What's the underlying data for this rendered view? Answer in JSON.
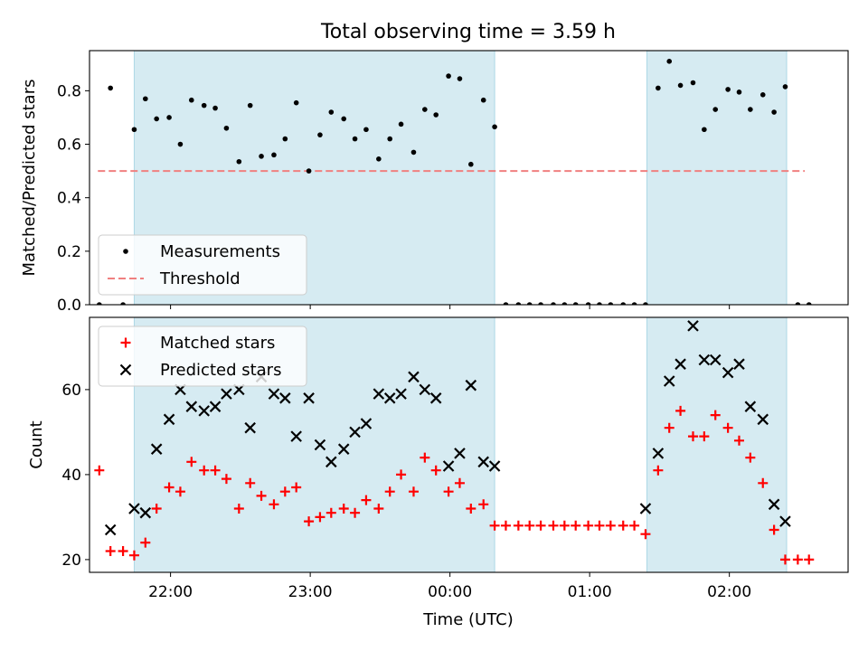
{
  "figure": {
    "title": "Total observing time = 3.59 h",
    "xlabel": "Time (UTC)"
  },
  "chart_data": [
    {
      "type": "scatter",
      "ylabel": "Matched/Predicted stars",
      "ylim": [
        0,
        0.95
      ],
      "yticks": [
        0.0,
        0.2,
        0.4,
        0.6,
        0.8
      ],
      "ytick_labels": [
        "0.0",
        "0.2",
        "0.4",
        "0.6",
        "0.8"
      ],
      "xlim_hours": [
        -2.58,
        2.85
      ],
      "xticks_hours": [
        -2,
        -1,
        0,
        1,
        2
      ],
      "xtick_labels": [
        "22:00",
        "23:00",
        "00:00",
        "01:00",
        "02:00"
      ],
      "shaded_intervals_hours": [
        [
          -2.26,
          0.32
        ],
        [
          1.41,
          2.41
        ]
      ],
      "threshold": {
        "y": 0.5,
        "x_range_hours": [
          -2.52,
          2.54
        ],
        "color": "#f08080"
      },
      "legend": {
        "placement": "lower-left",
        "entries": [
          "Measurements",
          "Threshold"
        ]
      },
      "series": [
        {
          "name": "Measurements",
          "marker": "dot",
          "color": "#000000",
          "x_hours": [
            -2.51,
            -2.43,
            -2.34,
            -2.26,
            -2.18,
            -2.1,
            -2.01,
            -1.93,
            -1.85,
            -1.76,
            -1.68,
            -1.6,
            -1.51,
            -1.43,
            -1.35,
            -1.26,
            -1.18,
            -1.1,
            -1.01,
            -0.93,
            -0.85,
            -0.76,
            -0.68,
            -0.6,
            -0.51,
            -0.43,
            -0.35,
            -0.26,
            -0.18,
            -0.1,
            -0.01,
            0.07,
            0.15,
            0.24,
            0.32,
            0.4,
            0.49,
            0.57,
            0.65,
            0.74,
            0.82,
            0.9,
            0.99,
            1.07,
            1.15,
            1.24,
            1.32,
            1.4,
            1.49,
            1.57,
            1.65,
            1.74,
            1.82,
            1.9,
            1.99,
            2.07,
            2.15,
            2.24,
            2.32,
            2.4,
            2.49,
            2.57
          ],
          "y": [
            0.0,
            0.81,
            0.0,
            0.655,
            0.77,
            0.695,
            0.7,
            0.6,
            0.765,
            0.745,
            0.735,
            0.66,
            0.535,
            0.745,
            0.555,
            0.56,
            0.62,
            0.755,
            0.5,
            0.635,
            0.72,
            0.695,
            0.62,
            0.655,
            0.545,
            0.62,
            0.675,
            0.57,
            0.73,
            0.71,
            0.855,
            0.845,
            0.525,
            0.765,
            0.665,
            0.0,
            0.0,
            0.0,
            0.0,
            0.0,
            0.0,
            0.0,
            0.0,
            0.0,
            0.0,
            0.0,
            0.0,
            0.0,
            0.81,
            0.91,
            0.82,
            0.83,
            0.655,
            0.73,
            0.805,
            0.795,
            0.73,
            0.785,
            0.72,
            0.815,
            0.0,
            0.0
          ]
        }
      ]
    },
    {
      "type": "scatter",
      "ylabel": "Count",
      "ylim": [
        17,
        77
      ],
      "yticks": [
        20,
        40,
        60
      ],
      "ytick_labels": [
        "20",
        "40",
        "60"
      ],
      "xlim_hours": [
        -2.58,
        2.85
      ],
      "xticks_hours": [
        -2,
        -1,
        0,
        1,
        2
      ],
      "xtick_labels": [
        "22:00",
        "23:00",
        "00:00",
        "01:00",
        "02:00"
      ],
      "shaded_intervals_hours": [
        [
          -2.26,
          0.32
        ],
        [
          1.41,
          2.41
        ]
      ],
      "legend": {
        "placement": "upper-left",
        "entries": [
          "Matched stars",
          "Predicted stars"
        ]
      },
      "series": [
        {
          "name": "Matched stars",
          "marker": "plus",
          "color": "#ff0000",
          "x_hours": [
            -2.51,
            -2.43,
            -2.34,
            -2.26,
            -2.18,
            -2.1,
            -2.01,
            -1.93,
            -1.85,
            -1.76,
            -1.68,
            -1.6,
            -1.51,
            -1.43,
            -1.35,
            -1.26,
            -1.18,
            -1.1,
            -1.01,
            -0.93,
            -0.85,
            -0.76,
            -0.68,
            -0.6,
            -0.51,
            -0.43,
            -0.35,
            -0.26,
            -0.18,
            -0.1,
            -0.01,
            0.07,
            0.15,
            0.24,
            0.32,
            0.4,
            0.49,
            0.57,
            0.65,
            0.74,
            0.82,
            0.9,
            0.99,
            1.07,
            1.15,
            1.24,
            1.32,
            1.4,
            1.49,
            1.57,
            1.65,
            1.74,
            1.82,
            1.9,
            1.99,
            2.07,
            2.15,
            2.24,
            2.32,
            2.4,
            2.49,
            2.57
          ],
          "y": [
            41,
            22,
            22,
            21,
            24,
            32,
            37,
            36,
            43,
            41,
            41,
            39,
            32,
            38,
            35,
            33,
            36,
            37,
            29,
            30,
            31,
            32,
            31,
            34,
            32,
            36,
            40,
            36,
            44,
            41,
            36,
            38,
            32,
            33,
            28,
            28,
            28,
            28,
            28,
            28,
            28,
            28,
            28,
            28,
            28,
            28,
            28,
            26,
            41,
            51,
            55,
            49,
            49,
            54,
            51,
            48,
            44,
            38,
            27,
            20,
            20,
            20
          ]
        },
        {
          "name": "Predicted stars",
          "marker": "x",
          "color": "#000000",
          "x_hours": [
            -2.43,
            -2.26,
            -2.18,
            -2.1,
            -2.01,
            -1.93,
            -1.85,
            -1.76,
            -1.68,
            -1.6,
            -1.51,
            -1.43,
            -1.35,
            -1.26,
            -1.18,
            -1.1,
            -1.01,
            -0.93,
            -0.85,
            -0.76,
            -0.68,
            -0.6,
            -0.51,
            -0.43,
            -0.35,
            -0.26,
            -0.18,
            -0.1,
            -0.01,
            0.07,
            0.15,
            0.24,
            0.32,
            1.4,
            1.49,
            1.57,
            1.65,
            1.74,
            1.82,
            1.9,
            1.99,
            2.07,
            2.15,
            2.24,
            2.32,
            2.4
          ],
          "y": [
            27,
            32,
            31,
            46,
            53,
            60,
            56,
            55,
            56,
            59,
            60,
            51,
            63,
            59,
            58,
            49,
            58,
            47,
            43,
            46,
            50,
            52,
            59,
            58,
            59,
            63,
            60,
            58,
            42,
            45,
            61,
            43,
            42,
            32,
            45,
            62,
            66,
            75,
            67,
            67,
            64,
            66,
            56,
            53,
            33,
            29
          ]
        }
      ]
    }
  ]
}
